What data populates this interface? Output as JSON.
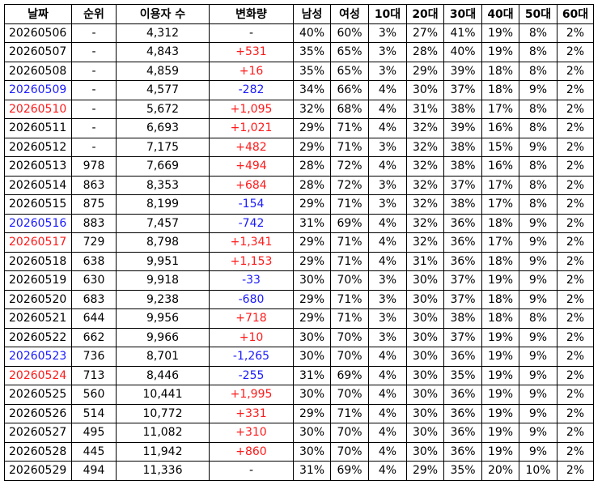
{
  "colors": {
    "weekday": "#000000",
    "saturday": "#1a1aff",
    "sunday": "#ff1a1a",
    "increase": "#ff1a1a",
    "decrease": "#1a1aff",
    "neutral": "#000000"
  },
  "headers": [
    "날짜",
    "순위",
    "이용자 수",
    "변화량",
    "남성",
    "여성",
    "10대",
    "20대",
    "30대",
    "40대",
    "50대",
    "60대"
  ],
  "rows": [
    {
      "date": "20260506",
      "date_color": "black",
      "rank": "-",
      "users": "4,312",
      "change": "-",
      "change_color": "black",
      "male": "40%",
      "female": "60%",
      "a10": "3%",
      "a20": "27%",
      "a30": "41%",
      "a40": "19%",
      "a50": "8%",
      "a60": "2%"
    },
    {
      "date": "20260507",
      "date_color": "black",
      "rank": "-",
      "users": "4,843",
      "change": "+531",
      "change_color": "red",
      "male": "35%",
      "female": "65%",
      "a10": "3%",
      "a20": "28%",
      "a30": "40%",
      "a40": "19%",
      "a50": "8%",
      "a60": "2%"
    },
    {
      "date": "20260508",
      "date_color": "black",
      "rank": "-",
      "users": "4,859",
      "change": "+16",
      "change_color": "red",
      "male": "35%",
      "female": "65%",
      "a10": "3%",
      "a20": "29%",
      "a30": "39%",
      "a40": "18%",
      "a50": "8%",
      "a60": "2%"
    },
    {
      "date": "20260509",
      "date_color": "blue",
      "rank": "-",
      "users": "4,577",
      "change": "-282",
      "change_color": "blue",
      "male": "34%",
      "female": "66%",
      "a10": "4%",
      "a20": "30%",
      "a30": "37%",
      "a40": "18%",
      "a50": "9%",
      "a60": "2%"
    },
    {
      "date": "20260510",
      "date_color": "red",
      "rank": "-",
      "users": "5,672",
      "change": "+1,095",
      "change_color": "red",
      "male": "32%",
      "female": "68%",
      "a10": "4%",
      "a20": "31%",
      "a30": "38%",
      "a40": "17%",
      "a50": "8%",
      "a60": "2%"
    },
    {
      "date": "20260511",
      "date_color": "black",
      "rank": "-",
      "users": "6,693",
      "change": "+1,021",
      "change_color": "red",
      "male": "29%",
      "female": "71%",
      "a10": "4%",
      "a20": "32%",
      "a30": "39%",
      "a40": "16%",
      "a50": "8%",
      "a60": "2%"
    },
    {
      "date": "20260512",
      "date_color": "black",
      "rank": "-",
      "users": "7,175",
      "change": "+482",
      "change_color": "red",
      "male": "29%",
      "female": "71%",
      "a10": "3%",
      "a20": "32%",
      "a30": "38%",
      "a40": "15%",
      "a50": "9%",
      "a60": "2%"
    },
    {
      "date": "20260513",
      "date_color": "black",
      "rank": "978",
      "users": "7,669",
      "change": "+494",
      "change_color": "red",
      "male": "28%",
      "female": "72%",
      "a10": "4%",
      "a20": "32%",
      "a30": "38%",
      "a40": "16%",
      "a50": "8%",
      "a60": "2%"
    },
    {
      "date": "20260514",
      "date_color": "black",
      "rank": "863",
      "users": "8,353",
      "change": "+684",
      "change_color": "red",
      "male": "28%",
      "female": "72%",
      "a10": "3%",
      "a20": "32%",
      "a30": "37%",
      "a40": "17%",
      "a50": "8%",
      "a60": "2%"
    },
    {
      "date": "20260515",
      "date_color": "black",
      "rank": "875",
      "users": "8,199",
      "change": "-154",
      "change_color": "blue",
      "male": "29%",
      "female": "71%",
      "a10": "3%",
      "a20": "32%",
      "a30": "38%",
      "a40": "17%",
      "a50": "8%",
      "a60": "2%"
    },
    {
      "date": "20260516",
      "date_color": "blue",
      "rank": "883",
      "users": "7,457",
      "change": "-742",
      "change_color": "blue",
      "male": "31%",
      "female": "69%",
      "a10": "4%",
      "a20": "32%",
      "a30": "36%",
      "a40": "18%",
      "a50": "9%",
      "a60": "2%"
    },
    {
      "date": "20260517",
      "date_color": "red",
      "rank": "729",
      "users": "8,798",
      "change": "+1,341",
      "change_color": "red",
      "male": "29%",
      "female": "71%",
      "a10": "4%",
      "a20": "32%",
      "a30": "36%",
      "a40": "17%",
      "a50": "9%",
      "a60": "2%"
    },
    {
      "date": "20260518",
      "date_color": "black",
      "rank": "638",
      "users": "9,951",
      "change": "+1,153",
      "change_color": "red",
      "male": "29%",
      "female": "71%",
      "a10": "4%",
      "a20": "31%",
      "a30": "36%",
      "a40": "18%",
      "a50": "9%",
      "a60": "2%"
    },
    {
      "date": "20260519",
      "date_color": "black",
      "rank": "630",
      "users": "9,918",
      "change": "-33",
      "change_color": "blue",
      "male": "30%",
      "female": "70%",
      "a10": "3%",
      "a20": "30%",
      "a30": "37%",
      "a40": "19%",
      "a50": "9%",
      "a60": "2%"
    },
    {
      "date": "20260520",
      "date_color": "black",
      "rank": "683",
      "users": "9,238",
      "change": "-680",
      "change_color": "blue",
      "male": "29%",
      "female": "71%",
      "a10": "3%",
      "a20": "30%",
      "a30": "37%",
      "a40": "18%",
      "a50": "9%",
      "a60": "2%"
    },
    {
      "date": "20260521",
      "date_color": "black",
      "rank": "644",
      "users": "9,956",
      "change": "+718",
      "change_color": "red",
      "male": "29%",
      "female": "71%",
      "a10": "3%",
      "a20": "30%",
      "a30": "38%",
      "a40": "18%",
      "a50": "8%",
      "a60": "2%"
    },
    {
      "date": "20260522",
      "date_color": "black",
      "rank": "662",
      "users": "9,966",
      "change": "+10",
      "change_color": "red",
      "male": "30%",
      "female": "70%",
      "a10": "3%",
      "a20": "30%",
      "a30": "37%",
      "a40": "19%",
      "a50": "9%",
      "a60": "2%"
    },
    {
      "date": "20260523",
      "date_color": "blue",
      "rank": "736",
      "users": "8,701",
      "change": "-1,265",
      "change_color": "blue",
      "male": "30%",
      "female": "70%",
      "a10": "4%",
      "a20": "30%",
      "a30": "36%",
      "a40": "19%",
      "a50": "9%",
      "a60": "2%"
    },
    {
      "date": "20260524",
      "date_color": "red",
      "rank": "713",
      "users": "8,446",
      "change": "-255",
      "change_color": "blue",
      "male": "31%",
      "female": "69%",
      "a10": "4%",
      "a20": "30%",
      "a30": "35%",
      "a40": "19%",
      "a50": "9%",
      "a60": "2%"
    },
    {
      "date": "20260525",
      "date_color": "black",
      "rank": "560",
      "users": "10,441",
      "change": "+1,995",
      "change_color": "red",
      "male": "30%",
      "female": "70%",
      "a10": "4%",
      "a20": "30%",
      "a30": "36%",
      "a40": "19%",
      "a50": "9%",
      "a60": "2%"
    },
    {
      "date": "20260526",
      "date_color": "black",
      "rank": "514",
      "users": "10,772",
      "change": "+331",
      "change_color": "red",
      "male": "29%",
      "female": "71%",
      "a10": "4%",
      "a20": "30%",
      "a30": "36%",
      "a40": "19%",
      "a50": "9%",
      "a60": "2%"
    },
    {
      "date": "20260527",
      "date_color": "black",
      "rank": "495",
      "users": "11,082",
      "change": "+310",
      "change_color": "red",
      "male": "30%",
      "female": "70%",
      "a10": "4%",
      "a20": "30%",
      "a30": "36%",
      "a40": "19%",
      "a50": "9%",
      "a60": "2%"
    },
    {
      "date": "20260528",
      "date_color": "black",
      "rank": "445",
      "users": "11,942",
      "change": "+860",
      "change_color": "red",
      "male": "30%",
      "female": "70%",
      "a10": "4%",
      "a20": "30%",
      "a30": "36%",
      "a40": "19%",
      "a50": "9%",
      "a60": "2%"
    },
    {
      "date": "20260529",
      "date_color": "black",
      "rank": "494",
      "users": "11,336",
      "change": "-",
      "change_color": "black",
      "male": "31%",
      "female": "69%",
      "a10": "4%",
      "a20": "29%",
      "a30": "35%",
      "a40": "20%",
      "a50": "10%",
      "a60": "2%"
    }
  ]
}
